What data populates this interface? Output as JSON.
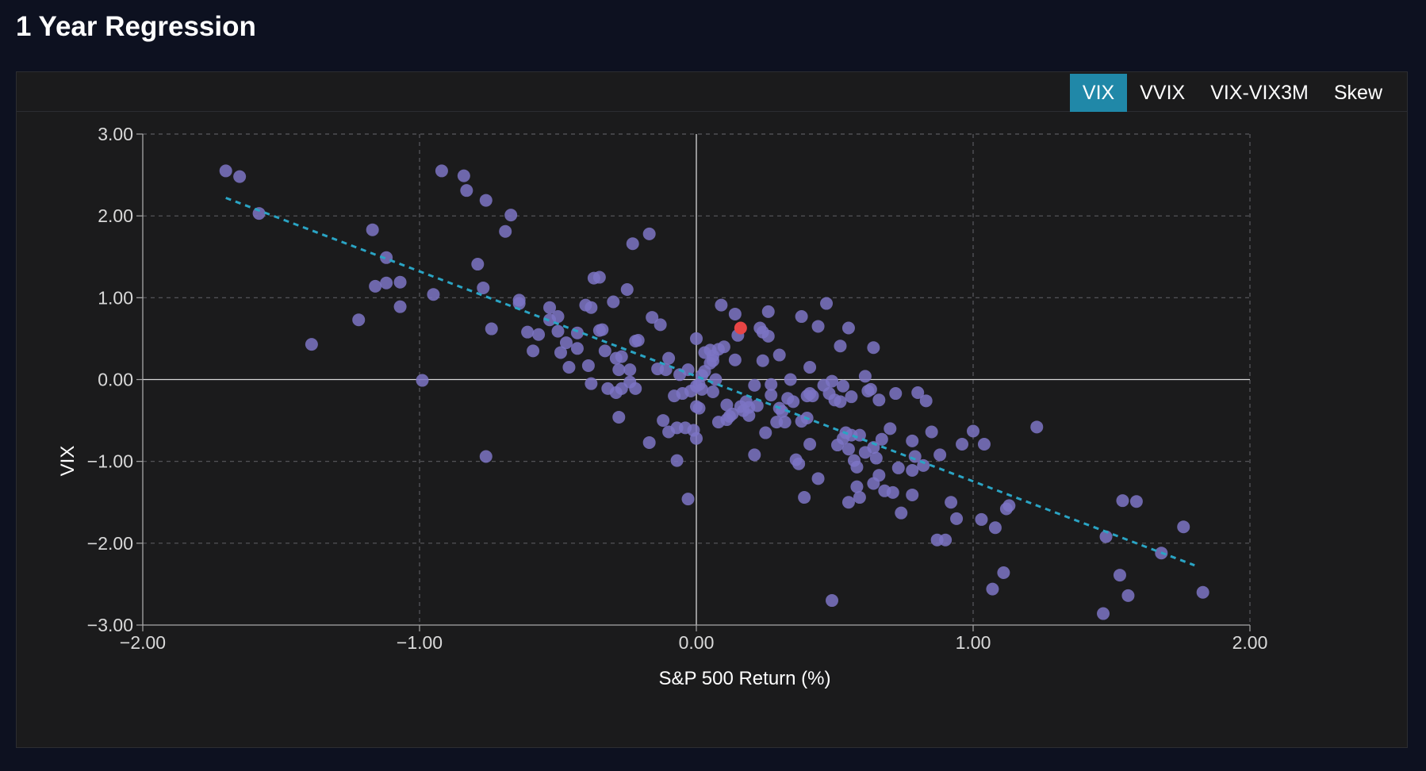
{
  "page": {
    "title": "1 Year Regression"
  },
  "tabs": [
    {
      "label": "VIX",
      "active": true
    },
    {
      "label": "VVIX",
      "active": false
    },
    {
      "label": "VIX-VIX3M",
      "active": false
    },
    {
      "label": "Skew",
      "active": false
    }
  ],
  "colors": {
    "background": "#0d1120",
    "panel": "#1b1b1c",
    "accent": "#2088a8",
    "points": "#7c74c4",
    "highlight": "#e84545",
    "regression": "#2aa4c4"
  },
  "chart_data": {
    "type": "scatter",
    "xlabel": "S&P 500 Return (%)",
    "ylabel": "VIX",
    "xlim": [
      -2,
      2
    ],
    "ylim": [
      -3,
      3
    ],
    "xticks": [
      -2,
      -1,
      0,
      1,
      2
    ],
    "yticks": [
      -3,
      -2,
      -1,
      0,
      1,
      2,
      3
    ],
    "xtick_labels": [
      "−2.00",
      "−1.00",
      "0.00",
      "1.00",
      "2.00"
    ],
    "ytick_labels": [
      "−3.00",
      "−2.00",
      "−1.00",
      "0.00",
      "1.00",
      "2.00",
      "3.00"
    ],
    "grid": true,
    "regression_line": {
      "x": [
        -1.7,
        1.8
      ],
      "y": [
        2.22,
        -2.27
      ]
    },
    "highlight_point": {
      "x": 0.16,
      "y": 0.63
    },
    "points": [
      [
        -1.7,
        2.55
      ],
      [
        -1.65,
        2.48
      ],
      [
        -1.58,
        2.03
      ],
      [
        -1.39,
        0.43
      ],
      [
        -1.22,
        0.73
      ],
      [
        -1.17,
        1.83
      ],
      [
        -1.16,
        1.14
      ],
      [
        -1.12,
        1.49
      ],
      [
        -1.12,
        1.18
      ],
      [
        -1.07,
        1.19
      ],
      [
        -1.07,
        0.89
      ],
      [
        -0.99,
        -0.01
      ],
      [
        -0.95,
        1.04
      ],
      [
        -0.92,
        2.55
      ],
      [
        -0.84,
        2.49
      ],
      [
        -0.83,
        2.31
      ],
      [
        -0.79,
        1.41
      ],
      [
        -0.77,
        1.12
      ],
      [
        -0.76,
        2.19
      ],
      [
        -0.76,
        -0.94
      ],
      [
        -0.74,
        0.62
      ],
      [
        -0.69,
        1.81
      ],
      [
        -0.67,
        2.01
      ],
      [
        -0.64,
        0.97
      ],
      [
        -0.64,
        0.93
      ],
      [
        -0.61,
        0.58
      ],
      [
        -0.59,
        0.35
      ],
      [
        -0.57,
        0.55
      ],
      [
        -0.53,
        0.88
      ],
      [
        -0.53,
        0.73
      ],
      [
        -0.5,
        0.77
      ],
      [
        -0.5,
        0.59
      ],
      [
        -0.49,
        0.33
      ],
      [
        -0.47,
        0.45
      ],
      [
        -0.46,
        0.15
      ],
      [
        -0.43,
        0.57
      ],
      [
        -0.43,
        0.38
      ],
      [
        -0.4,
        0.91
      ],
      [
        -0.39,
        0.17
      ],
      [
        -0.38,
        -0.05
      ],
      [
        -0.38,
        0.88
      ],
      [
        -0.37,
        1.24
      ],
      [
        -0.35,
        1.25
      ],
      [
        -0.35,
        0.6
      ],
      [
        -0.34,
        0.61
      ],
      [
        -0.33,
        0.35
      ],
      [
        -0.32,
        -0.11
      ],
      [
        -0.3,
        0.95
      ],
      [
        -0.29,
        -0.16
      ],
      [
        -0.29,
        0.26
      ],
      [
        -0.28,
        0.12
      ],
      [
        -0.28,
        -0.46
      ],
      [
        -0.27,
        -0.11
      ],
      [
        -0.27,
        0.28
      ],
      [
        -0.25,
        1.1
      ],
      [
        -0.24,
        0.12
      ],
      [
        -0.24,
        -0.03
      ],
      [
        -0.23,
        1.66
      ],
      [
        -0.22,
        -0.11
      ],
      [
        -0.22,
        0.47
      ],
      [
        -0.21,
        0.48
      ],
      [
        -0.17,
        -0.77
      ],
      [
        -0.17,
        1.78
      ],
      [
        -0.16,
        0.76
      ],
      [
        -0.14,
        0.13
      ],
      [
        -0.13,
        0.67
      ],
      [
        -0.12,
        -0.5
      ],
      [
        -0.11,
        0.12
      ],
      [
        -0.1,
        0.26
      ],
      [
        -0.1,
        -0.64
      ],
      [
        -0.08,
        -0.2
      ],
      [
        -0.07,
        -0.99
      ],
      [
        -0.07,
        -0.59
      ],
      [
        -0.06,
        0.06
      ],
      [
        -0.05,
        -0.17
      ],
      [
        -0.04,
        -0.59
      ],
      [
        -0.03,
        -1.46
      ],
      [
        -0.03,
        0.12
      ],
      [
        -0.02,
        -0.14
      ],
      [
        -0.01,
        -0.62
      ],
      [
        0.0,
        -0.33
      ],
      [
        0.0,
        -0.08
      ],
      [
        0.0,
        0.5
      ],
      [
        0.0,
        -0.72
      ],
      [
        0.01,
        -0.06
      ],
      [
        0.01,
        -0.35
      ],
      [
        0.02,
        0.05
      ],
      [
        0.02,
        -0.12
      ],
      [
        0.03,
        0.1
      ],
      [
        0.03,
        0.33
      ],
      [
        0.05,
        0.2
      ],
      [
        0.05,
        0.36
      ],
      [
        0.06,
        0.29
      ],
      [
        0.06,
        0.23
      ],
      [
        0.06,
        -0.15
      ],
      [
        0.07,
        0.0
      ],
      [
        0.08,
        -0.52
      ],
      [
        0.08,
        0.37
      ],
      [
        0.09,
        0.91
      ],
      [
        0.1,
        0.4
      ],
      [
        0.11,
        -0.49
      ],
      [
        0.11,
        -0.31
      ],
      [
        0.12,
        -0.45
      ],
      [
        0.13,
        -0.42
      ],
      [
        0.14,
        0.8
      ],
      [
        0.14,
        0.24
      ],
      [
        0.15,
        0.54
      ],
      [
        0.16,
        -0.33
      ],
      [
        0.17,
        -0.38
      ],
      [
        0.18,
        -0.27
      ],
      [
        0.19,
        -0.44
      ],
      [
        0.19,
        -0.34
      ],
      [
        0.21,
        -0.92
      ],
      [
        0.21,
        -0.07
      ],
      [
        0.22,
        -0.32
      ],
      [
        0.23,
        0.63
      ],
      [
        0.24,
        0.23
      ],
      [
        0.24,
        0.58
      ],
      [
        0.25,
        -0.65
      ],
      [
        0.26,
        0.83
      ],
      [
        0.26,
        0.53
      ],
      [
        0.27,
        -0.06
      ],
      [
        0.27,
        -0.19
      ],
      [
        0.29,
        -0.52
      ],
      [
        0.3,
        0.3
      ],
      [
        0.3,
        -0.35
      ],
      [
        0.31,
        -0.39
      ],
      [
        0.32,
        -0.52
      ],
      [
        0.33,
        -0.23
      ],
      [
        0.34,
        0.0
      ],
      [
        0.35,
        -0.27
      ],
      [
        0.36,
        -0.98
      ],
      [
        0.37,
        -1.03
      ],
      [
        0.38,
        0.77
      ],
      [
        0.38,
        -0.51
      ],
      [
        0.39,
        -1.44
      ],
      [
        0.4,
        -0.47
      ],
      [
        0.4,
        -0.2
      ],
      [
        0.41,
        -0.17
      ],
      [
        0.41,
        0.15
      ],
      [
        0.41,
        -0.79
      ],
      [
        0.42,
        -0.2
      ],
      [
        0.44,
        -1.21
      ],
      [
        0.44,
        0.65
      ],
      [
        0.46,
        -0.07
      ],
      [
        0.47,
        0.93
      ],
      [
        0.48,
        -0.17
      ],
      [
        0.49,
        -0.02
      ],
      [
        0.49,
        -2.7
      ],
      [
        0.5,
        -0.25
      ],
      [
        0.51,
        -0.8
      ],
      [
        0.52,
        0.41
      ],
      [
        0.52,
        -0.27
      ],
      [
        0.53,
        -0.08
      ],
      [
        0.53,
        -0.72
      ],
      [
        0.54,
        -0.65
      ],
      [
        0.55,
        -1.5
      ],
      [
        0.55,
        -0.85
      ],
      [
        0.55,
        0.63
      ],
      [
        0.56,
        -0.21
      ],
      [
        0.56,
        -0.68
      ],
      [
        0.57,
        -0.99
      ],
      [
        0.58,
        -1.07
      ],
      [
        0.58,
        -1.31
      ],
      [
        0.59,
        -0.68
      ],
      [
        0.59,
        -1.44
      ],
      [
        0.61,
        -0.89
      ],
      [
        0.61,
        0.04
      ],
      [
        0.62,
        -0.14
      ],
      [
        0.63,
        -0.12
      ],
      [
        0.64,
        -0.83
      ],
      [
        0.64,
        0.39
      ],
      [
        0.64,
        -1.27
      ],
      [
        0.65,
        -0.96
      ],
      [
        0.66,
        -0.25
      ],
      [
        0.66,
        -1.17
      ],
      [
        0.67,
        -0.73
      ],
      [
        0.68,
        -1.36
      ],
      [
        0.7,
        -0.6
      ],
      [
        0.71,
        -1.38
      ],
      [
        0.72,
        -0.17
      ],
      [
        0.73,
        -1.08
      ],
      [
        0.74,
        -1.63
      ],
      [
        0.78,
        -1.41
      ],
      [
        0.78,
        -0.75
      ],
      [
        0.78,
        -1.11
      ],
      [
        0.79,
        -0.94
      ],
      [
        0.8,
        -0.16
      ],
      [
        0.82,
        -1.05
      ],
      [
        0.83,
        -0.26
      ],
      [
        0.85,
        -0.64
      ],
      [
        0.87,
        -1.96
      ],
      [
        0.88,
        -0.92
      ],
      [
        0.9,
        -1.96
      ],
      [
        0.92,
        -1.5
      ],
      [
        0.94,
        -1.7
      ],
      [
        0.96,
        -0.79
      ],
      [
        1.0,
        -0.63
      ],
      [
        1.04,
        -0.79
      ],
      [
        1.03,
        -1.71
      ],
      [
        1.07,
        -2.56
      ],
      [
        1.08,
        -1.81
      ],
      [
        1.11,
        -2.36
      ],
      [
        1.12,
        -1.58
      ],
      [
        1.13,
        -1.54
      ],
      [
        1.23,
        -0.58
      ],
      [
        1.47,
        -2.86
      ],
      [
        1.48,
        -1.92
      ],
      [
        1.53,
        -2.39
      ],
      [
        1.54,
        -1.48
      ],
      [
        1.56,
        -2.64
      ],
      [
        1.59,
        -1.49
      ],
      [
        1.68,
        -2.12
      ],
      [
        1.76,
        -1.8
      ],
      [
        1.83,
        -2.6
      ]
    ]
  }
}
